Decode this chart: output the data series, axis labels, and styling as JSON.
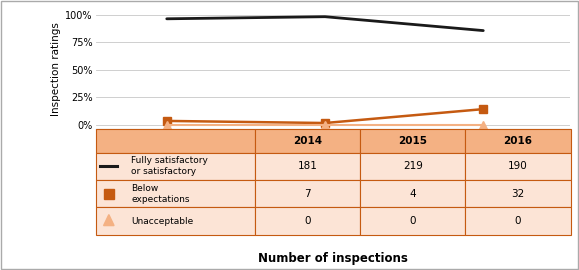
{
  "years": [
    2014,
    2015,
    2016
  ],
  "fully_satisfactory": [
    96.3,
    98.2,
    85.6
  ],
  "below_expectations": [
    3.7,
    1.8,
    14.4
  ],
  "unacceptable": [
    0.0,
    0.0,
    0.0
  ],
  "counts_fully": [
    "181",
    "219",
    "190"
  ],
  "counts_below": [
    "7",
    "4",
    "32"
  ],
  "counts_unacceptable": [
    "0",
    "0",
    "0"
  ],
  "ylabel": "Inspection ratings",
  "xlabel": "Number of inspections",
  "color_black": "#1a1a1a",
  "color_orange": "#C55A11",
  "color_orange_light": "#F4B183",
  "table_header_bg": "#F4B183",
  "table_row_bg": "#FCE4D6",
  "table_border": "#C55A11",
  "yticks": [
    0,
    25,
    50,
    75,
    100
  ],
  "ylim": [
    -4,
    106
  ],
  "col_labels": [
    "",
    "2014",
    "2015",
    "2016"
  ],
  "row_labels": [
    "Fully satisfactory\nor satisfactory",
    "Below\nexpectations",
    "Unacceptable"
  ]
}
